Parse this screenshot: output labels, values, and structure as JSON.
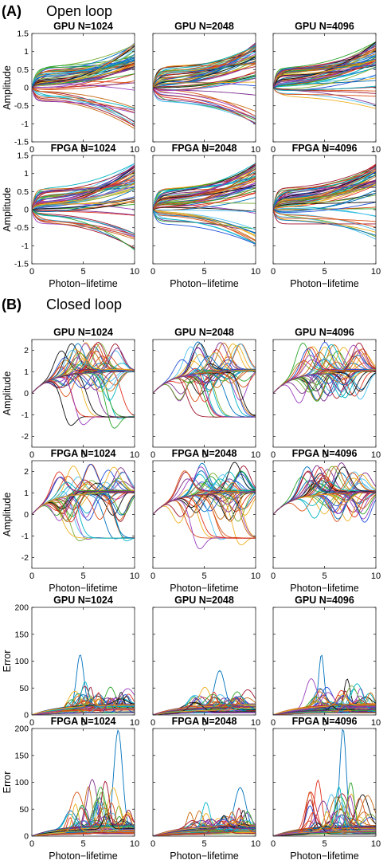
{
  "figure": {
    "section_a": {
      "letter": "(A)",
      "title": "Open loop"
    },
    "section_b": {
      "letter": "(B)",
      "title": "Closed loop"
    }
  },
  "series_palette": [
    "#0072BD",
    "#D95319",
    "#EDB120",
    "#7E2F8E",
    "#77AC30",
    "#4DBEEE",
    "#A2142F",
    "#1f4fd8",
    "#e0301e",
    "#2aa52a",
    "#00b5c5",
    "#c86a10",
    "#9b3fbf",
    "#111111"
  ],
  "chart_data": [
    {
      "id": "ol-gpu-1024",
      "type": "line",
      "title": "GPU N=1024",
      "xlabel": "",
      "ylabel": "Amplitude",
      "xlim": [
        0,
        10
      ],
      "ylim": [
        -1.5,
        1.5
      ],
      "xticks": [
        "0",
        "5",
        "10"
      ],
      "yticks": [
        "-1.5",
        "-1",
        "-0.5",
        "0",
        "0.5",
        "1",
        "1.5"
      ],
      "grid": false,
      "mode": "open",
      "n_series": 60,
      "description_values": {
        "final_range": [
          -1.1,
          1.25
        ]
      }
    },
    {
      "id": "ol-gpu-2048",
      "type": "line",
      "title": "GPU N=2048",
      "xlabel": "",
      "ylabel": "",
      "xlim": [
        0,
        10
      ],
      "ylim": [
        -1.5,
        1.5
      ],
      "xticks": [
        "0",
        "5",
        "10"
      ],
      "yticks": [],
      "grid": false,
      "mode": "open",
      "n_series": 60,
      "description_values": {
        "final_range": [
          -1.0,
          1.25
        ]
      }
    },
    {
      "id": "ol-gpu-4096",
      "type": "line",
      "title": "GPU N=4096",
      "xlabel": "",
      "ylabel": "",
      "xlim": [
        0,
        10
      ],
      "ylim": [
        -1.5,
        1.5
      ],
      "xticks": [
        "0",
        "5",
        "10"
      ],
      "yticks": [],
      "grid": false,
      "mode": "open",
      "n_series": 60,
      "description_values": {
        "final_range": [
          -0.8,
          1.2
        ]
      }
    },
    {
      "id": "ol-fpga-1024",
      "type": "line",
      "title": "FPGA N=1024",
      "xlabel": "Photon−lifetime",
      "ylabel": "Amplitude",
      "xlim": [
        0,
        10
      ],
      "ylim": [
        -1.5,
        1.5
      ],
      "xticks": [
        "0",
        "5",
        "10"
      ],
      "yticks": [
        "-1.5",
        "-1",
        "-0.5",
        "0",
        "0.5",
        "1",
        "1.5"
      ],
      "grid": false,
      "mode": "open",
      "n_series": 60,
      "description_values": {
        "final_range": [
          -1.1,
          1.25
        ]
      }
    },
    {
      "id": "ol-fpga-2048",
      "type": "line",
      "title": "FPGA N=2048",
      "xlabel": "Photon−lifetime",
      "ylabel": "",
      "xlim": [
        0,
        10
      ],
      "ylim": [
        -1.5,
        1.5
      ],
      "xticks": [
        "0",
        "5",
        "10"
      ],
      "yticks": [],
      "grid": false,
      "mode": "open",
      "n_series": 60,
      "description_values": {
        "final_range": [
          -1.05,
          1.25
        ]
      }
    },
    {
      "id": "ol-fpga-4096",
      "type": "line",
      "title": "FPGA N=4096",
      "xlabel": "Photon−lifetime",
      "ylabel": "",
      "xlim": [
        0,
        10
      ],
      "ylim": [
        -1.5,
        1.5
      ],
      "xticks": [
        "0",
        "5",
        "10"
      ],
      "yticks": [],
      "grid": false,
      "mode": "open",
      "n_series": 60,
      "description_values": {
        "final_range": [
          -0.8,
          1.15
        ]
      }
    },
    {
      "id": "cl-gpu-1024",
      "type": "line",
      "title": "GPU N=1024",
      "xlabel": "",
      "ylabel": "Amplitude",
      "xlim": [
        0,
        10
      ],
      "ylim": [
        -2.5,
        2.5
      ],
      "xticks": [
        "0",
        "5",
        "10"
      ],
      "yticks": [
        "-2",
        "-1",
        "0",
        "1",
        "2"
      ],
      "grid": false,
      "mode": "closed",
      "n_series": 60,
      "description_values": {
        "settle_levels": [
          -1.1,
          1.05
        ]
      }
    },
    {
      "id": "cl-gpu-2048",
      "type": "line",
      "title": "GPU N=2048",
      "xlabel": "",
      "ylabel": "",
      "xlim": [
        0,
        10
      ],
      "ylim": [
        -2.5,
        2.5
      ],
      "xticks": [
        "0",
        "5",
        "10"
      ],
      "yticks": [],
      "grid": false,
      "mode": "closed",
      "n_series": 60,
      "description_values": {
        "settle_levels": [
          -1.1,
          1.05
        ]
      }
    },
    {
      "id": "cl-gpu-4096",
      "type": "line",
      "title": "GPU N=4096",
      "xlabel": "",
      "ylabel": "",
      "xlim": [
        0,
        10
      ],
      "ylim": [
        -2.5,
        2.5
      ],
      "xticks": [
        "0",
        "5",
        "10"
      ],
      "yticks": [],
      "grid": false,
      "mode": "closed",
      "n_series": 60,
      "description_values": {
        "settle_levels": [
          1.0,
          1.1
        ]
      }
    },
    {
      "id": "cl-fpga-1024",
      "type": "line",
      "title": "FPGA N=1024",
      "xlabel": "Photon−lifetime",
      "ylabel": "Amplitude",
      "xlim": [
        0,
        10
      ],
      "ylim": [
        -2.5,
        2.5
      ],
      "xticks": [
        "0",
        "5",
        "10"
      ],
      "yticks": [
        "-2",
        "-1",
        "0",
        "1",
        "2"
      ],
      "grid": false,
      "mode": "closed",
      "n_series": 60,
      "description_values": {
        "settle_levels": [
          0.9,
          1.1
        ]
      }
    },
    {
      "id": "cl-fpga-2048",
      "type": "line",
      "title": "FPGA N=2048",
      "xlabel": "Photon−lifetime",
      "ylabel": "",
      "xlim": [
        0,
        10
      ],
      "ylim": [
        -2.5,
        2.5
      ],
      "xticks": [
        "0",
        "5",
        "10"
      ],
      "yticks": [],
      "grid": false,
      "mode": "closed",
      "n_series": 60,
      "description_values": {
        "settle_levels": [
          0.9,
          1.1
        ]
      }
    },
    {
      "id": "cl-fpga-4096",
      "type": "line",
      "title": "FPGA N=4096",
      "xlabel": "Photon−lifetime",
      "ylabel": "",
      "xlim": [
        0,
        10
      ],
      "ylim": [
        -2.5,
        2.5
      ],
      "xticks": [
        "0",
        "5",
        "10"
      ],
      "yticks": [],
      "grid": false,
      "mode": "closed",
      "n_series": 60,
      "description_values": {
        "settle_levels": [
          0.95,
          1.05
        ]
      }
    },
    {
      "id": "er-gpu-1024",
      "type": "line",
      "title": "GPU N=1024",
      "xlabel": "",
      "ylabel": "Error",
      "xlim": [
        0,
        10
      ],
      "ylim": [
        0,
        200
      ],
      "xticks": [
        "0",
        "5",
        "10"
      ],
      "yticks": [
        "0",
        "50",
        "100",
        "150",
        "200"
      ],
      "grid": false,
      "mode": "error",
      "n_series": 60,
      "description_values": {
        "peak_max": 100,
        "peak_time": 4.7
      }
    },
    {
      "id": "er-gpu-2048",
      "type": "line",
      "title": "GPU N=2048",
      "xlabel": "",
      "ylabel": "",
      "xlim": [
        0,
        10
      ],
      "ylim": [
        0,
        200
      ],
      "xticks": [
        "0",
        "5",
        "10"
      ],
      "yticks": [],
      "grid": false,
      "mode": "error",
      "n_series": 60,
      "description_values": {
        "peak_max": 75,
        "peak_time": 6.5
      }
    },
    {
      "id": "er-gpu-4096",
      "type": "line",
      "title": "GPU N=4096",
      "xlabel": "",
      "ylabel": "",
      "xlim": [
        0,
        10
      ],
      "ylim": [
        0,
        200
      ],
      "xticks": [
        "0",
        "5",
        "10"
      ],
      "yticks": [],
      "grid": false,
      "mode": "error",
      "n_series": 60,
      "description_values": {
        "peak_max": 97,
        "peak_time": 4.7
      }
    },
    {
      "id": "er-fpga-1024",
      "type": "line",
      "title": "FPGA N=1024",
      "xlabel": "Photon−lifetime",
      "ylabel": "Error",
      "xlim": [
        0,
        10
      ],
      "ylim": [
        0,
        200
      ],
      "xticks": [
        "0",
        "5",
        "10"
      ],
      "yticks": [
        "0",
        "50",
        "100",
        "150",
        "200"
      ],
      "grid": false,
      "mode": "error",
      "n_series": 60,
      "description_values": {
        "peak_max": 185,
        "peak_time": 8.4
      }
    },
    {
      "id": "er-fpga-2048",
      "type": "line",
      "title": "FPGA N=2048",
      "xlabel": "Photon−lifetime",
      "ylabel": "",
      "xlim": [
        0,
        10
      ],
      "ylim": [
        0,
        200
      ],
      "xticks": [
        "0",
        "5",
        "10"
      ],
      "yticks": [],
      "grid": false,
      "mode": "error",
      "n_series": 60,
      "description_values": {
        "peak_max": 85,
        "peak_time": 8.5
      }
    },
    {
      "id": "er-fpga-4096",
      "type": "line",
      "title": "FPGA N=4096",
      "xlabel": "Photon−lifetime",
      "ylabel": "",
      "xlim": [
        0,
        10
      ],
      "ylim": [
        0,
        200
      ],
      "xticks": [
        "0",
        "5",
        "10"
      ],
      "yticks": [],
      "grid": false,
      "mode": "error",
      "n_series": 60,
      "description_values": {
        "peak_max": 185,
        "peak_time": 6.8
      }
    }
  ]
}
